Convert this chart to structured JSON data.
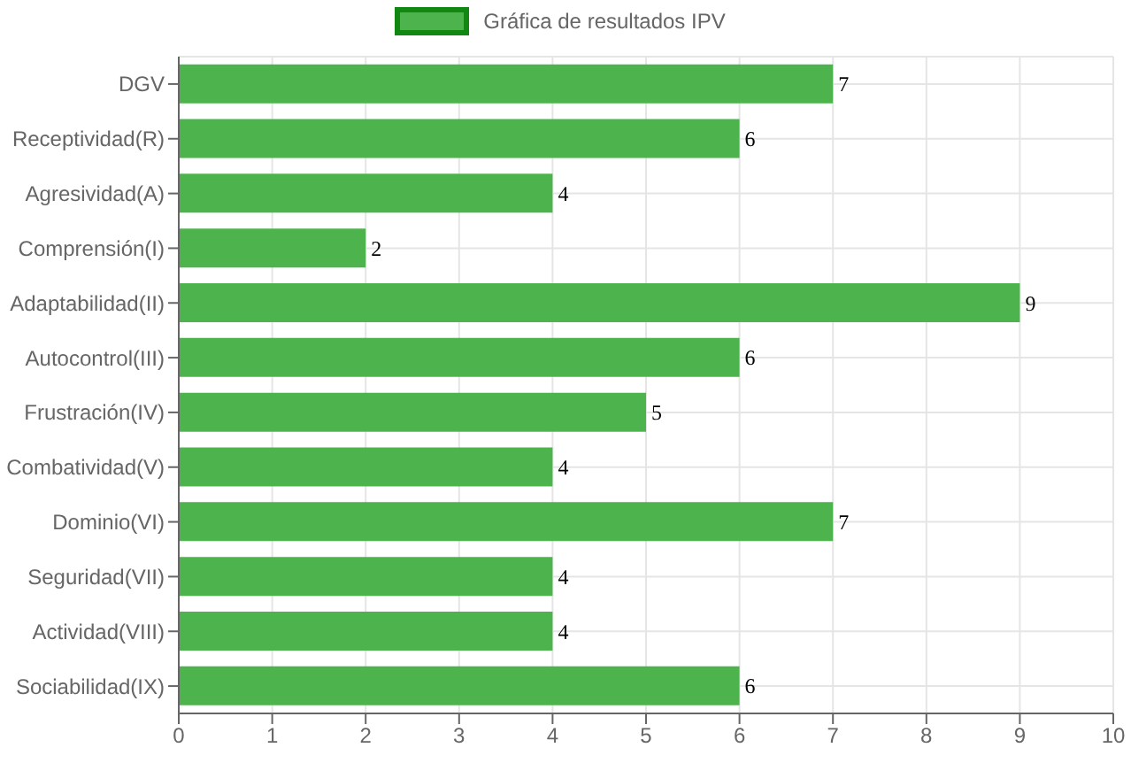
{
  "chart_data": {
    "type": "bar",
    "orientation": "horizontal",
    "categories": [
      "DGV",
      "Receptividad(R)",
      "Agresividad(A)",
      "Comprensión(I)",
      "Adaptabilidad(II)",
      "Autocontrol(III)",
      "Frustración(IV)",
      "Combatividad(V)",
      "Dominio(VI)",
      "Seguridad(VII)",
      "Actividad(VIII)",
      "Sociabilidad(IX)"
    ],
    "series": [
      {
        "name": "Gráfica de resultados IPV",
        "color": "#4db34d",
        "values": [
          7,
          6,
          4,
          2,
          9,
          6,
          5,
          4,
          7,
          4,
          4,
          6
        ]
      }
    ],
    "xlim": [
      0,
      10
    ],
    "xticks": [
      0,
      1,
      2,
      3,
      4,
      5,
      6,
      7,
      8,
      9,
      10
    ],
    "grid": true,
    "legend": "top",
    "data_labels": true
  }
}
